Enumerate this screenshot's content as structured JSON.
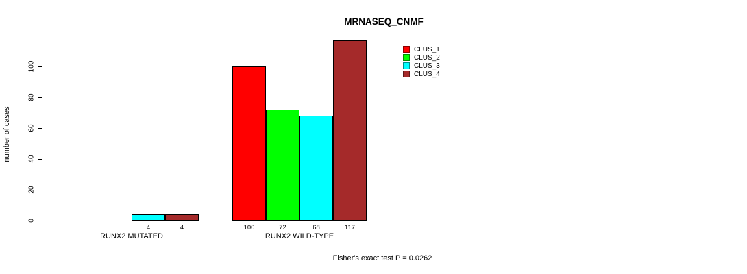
{
  "chart_data": {
    "type": "bar",
    "title": "MRNASEQ_CNMF",
    "xlabel": "",
    "ylabel": "number of cases",
    "footnote": "Fisher's exact test P = 0.0262",
    "series": [
      "CLUS_1",
      "CLUS_2",
      "CLUS_3",
      "CLUS_4"
    ],
    "colors": [
      "#FF0000",
      "#00FF00",
      "#00FFFF",
      "#A52A2A"
    ],
    "groups": [
      {
        "label": "RUNX2 MUTATED",
        "values": [
          0,
          0,
          4,
          4
        ],
        "value_labels": [
          "",
          "",
          "4",
          "4"
        ]
      },
      {
        "label": "RUNX2 WILD-TYPE",
        "values": [
          100,
          72,
          68,
          117
        ],
        "value_labels": [
          "100",
          "72",
          "68",
          "117"
        ]
      }
    ],
    "yticks": [
      0,
      20,
      40,
      60,
      80,
      100
    ],
    "ylim": [
      0,
      100
    ],
    "grid": false,
    "legend_position": "top-right"
  }
}
